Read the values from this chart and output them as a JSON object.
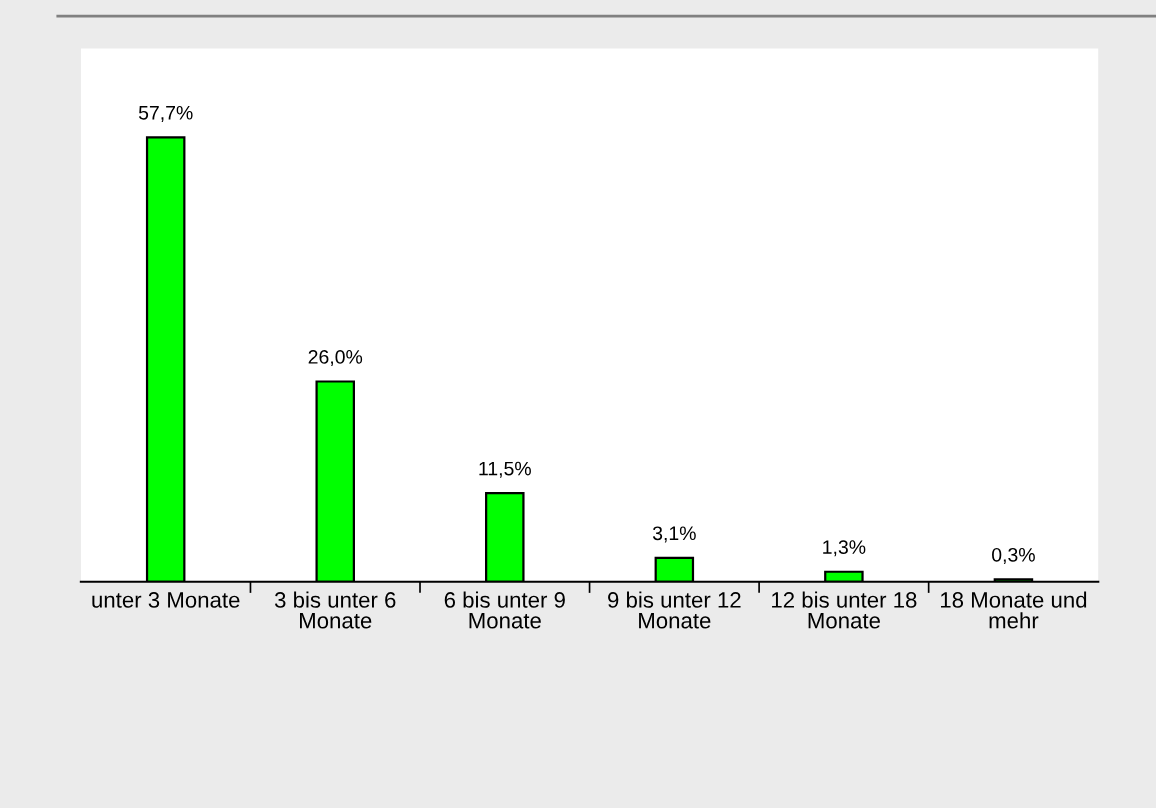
{
  "chart_data": {
    "type": "bar",
    "categories": [
      "unter 3 Monate",
      "3 bis unter 6\nMonate",
      "6 bis unter 9\nMonate",
      "9 bis unter 12\nMonate",
      "12 bis unter 18\nMonate",
      "18 Monate und\nmehr"
    ],
    "values": [
      57.7,
      26.0,
      11.5,
      3.1,
      1.3,
      0.3
    ],
    "value_labels": [
      "57,7%",
      "26,0%",
      "11,5%",
      "3,1%",
      "1,3%",
      "0,3%"
    ],
    "color": "#00ff00",
    "grid": false,
    "legend": false
  }
}
